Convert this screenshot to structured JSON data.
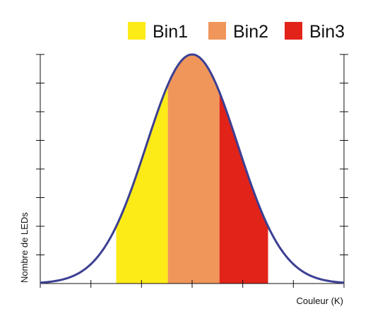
{
  "chart_data": {
    "type": "area",
    "xlabel": "Couleur (K)",
    "ylabel": "Nombre de LEDs",
    "curve_color": "#3b3f93",
    "legend": [
      {
        "label": "Bin1",
        "color": "#fdeb17"
      },
      {
        "label": "Bin2",
        "color": "#f0965a"
      },
      {
        "label": "Bin3",
        "color": "#e2231a"
      }
    ],
    "legend_position": "top-right",
    "distribution": {
      "shape": "gaussian",
      "mean": 5,
      "sigma": 1.5,
      "peak": 8
    },
    "xlim": [
      0,
      10
    ],
    "ylim": [
      0,
      8
    ],
    "x_ticks": [
      0,
      1.667,
      3.333,
      5,
      6.667,
      8.333,
      10
    ],
    "y_ticks": [
      1,
      2,
      3,
      4,
      5,
      6,
      7,
      8
    ],
    "bins": [
      {
        "name": "Bin1",
        "x_start": 2.5,
        "x_end": 4.2,
        "color": "#fdeb17"
      },
      {
        "name": "Bin2",
        "x_start": 4.2,
        "x_end": 5.9,
        "color": "#f0965a"
      },
      {
        "name": "Bin3",
        "x_start": 5.9,
        "x_end": 7.5,
        "color": "#e2231a"
      }
    ],
    "grid": false
  }
}
